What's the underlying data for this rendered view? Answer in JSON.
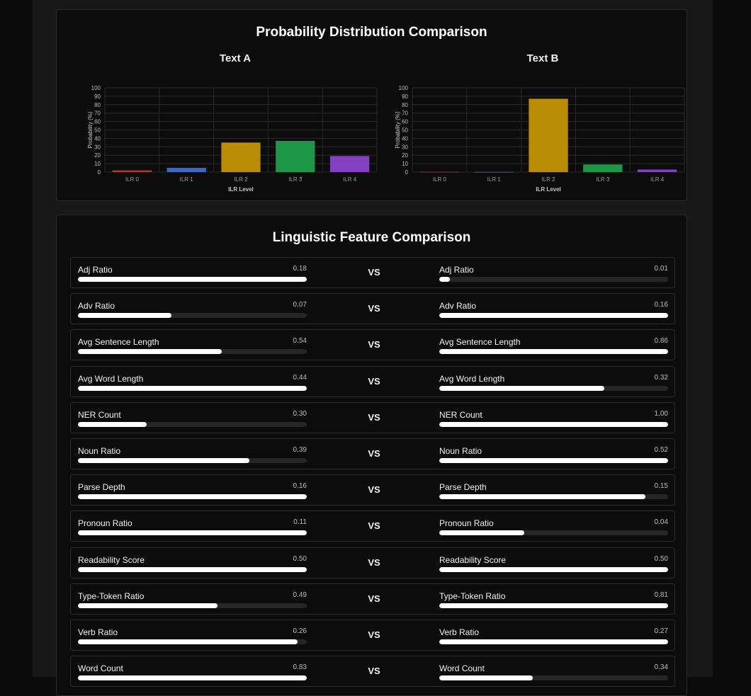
{
  "distribution": {
    "title": "Probability Distribution Comparison",
    "charts": [
      {
        "title": "Text A",
        "ylabel": "Probability (%)",
        "xlabel": "ILR Level",
        "yticks": [
          "0",
          "10",
          "20",
          "30",
          "40",
          "50",
          "60",
          "70",
          "80",
          "90",
          "100"
        ]
      },
      {
        "title": "Text B",
        "ylabel": "Probability (%)",
        "xlabel": "ILR Level",
        "yticks": [
          "0",
          "10",
          "20",
          "30",
          "40",
          "50",
          "60",
          "70",
          "80",
          "90",
          "100"
        ]
      }
    ]
  },
  "chart_data": [
    {
      "type": "bar",
      "title": "Text A",
      "categories": [
        "ILR 0",
        "ILR 1",
        "ILR 2",
        "ILR 3",
        "ILR 4"
      ],
      "values": [
        2,
        5,
        35,
        37,
        19
      ],
      "colors": [
        "#c2363a",
        "#3b6fd0",
        "#c59405",
        "#1f9e49",
        "#8a44cc"
      ],
      "xlabel": "ILR Level",
      "ylabel": "Probability (%)",
      "ylim": [
        0,
        100
      ],
      "grid": true
    },
    {
      "type": "bar",
      "title": "Text B",
      "categories": [
        "ILR 0",
        "ILR 1",
        "ILR 2",
        "ILR 3",
        "ILR 4"
      ],
      "values": [
        0.3,
        0.2,
        87,
        9,
        3
      ],
      "colors": [
        "#c2363a",
        "#3b6fd0",
        "#c59405",
        "#1f9e49",
        "#8a44cc"
      ],
      "xlabel": "ILR Level",
      "ylabel": "Probability (%)",
      "ylim": [
        0,
        100
      ],
      "grid": true
    }
  ],
  "features": {
    "title": "Linguistic Feature Comparison",
    "vs_label": "VS",
    "rows": [
      {
        "left": {
          "label": "Adj Ratio",
          "value": "0.18",
          "fill": 1.0
        },
        "right": {
          "label": "Adj Ratio",
          "value": "0.01",
          "fill": 0.045
        }
      },
      {
        "left": {
          "label": "Adv Ratio",
          "value": "0.07",
          "fill": 0.41
        },
        "right": {
          "label": "Adv Ratio",
          "value": "0.16",
          "fill": 1.0
        }
      },
      {
        "left": {
          "label": "Avg Sentence Length",
          "value": "0.54",
          "fill": 0.63
        },
        "right": {
          "label": "Avg Sentence Length",
          "value": "0.86",
          "fill": 1.0
        }
      },
      {
        "left": {
          "label": "Avg Word Length",
          "value": "0.44",
          "fill": 1.0
        },
        "right": {
          "label": "Avg Word Length",
          "value": "0.32",
          "fill": 0.72
        }
      },
      {
        "left": {
          "label": "NER Count",
          "value": "0.30",
          "fill": 0.3
        },
        "right": {
          "label": "NER Count",
          "value": "1.00",
          "fill": 1.0
        }
      },
      {
        "left": {
          "label": "Noun Ratio",
          "value": "0.39",
          "fill": 0.75
        },
        "right": {
          "label": "Noun Ratio",
          "value": "0.52",
          "fill": 1.0
        }
      },
      {
        "left": {
          "label": "Parse Depth",
          "value": "0.16",
          "fill": 1.0
        },
        "right": {
          "label": "Parse Depth",
          "value": "0.15",
          "fill": 0.9
        }
      },
      {
        "left": {
          "label": "Pronoun Ratio",
          "value": "0.11",
          "fill": 1.0
        },
        "right": {
          "label": "Pronoun Ratio",
          "value": "0.04",
          "fill": 0.37
        }
      },
      {
        "left": {
          "label": "Readability Score",
          "value": "0.50",
          "fill": 1.0
        },
        "right": {
          "label": "Readability Score",
          "value": "0.50",
          "fill": 1.0
        }
      },
      {
        "left": {
          "label": "Type-Token Ratio",
          "value": "0.49",
          "fill": 0.61
        },
        "right": {
          "label": "Type-Token Ratio",
          "value": "0.81",
          "fill": 1.0
        }
      },
      {
        "left": {
          "label": "Verb Ratio",
          "value": "0.26",
          "fill": 0.96
        },
        "right": {
          "label": "Verb Ratio",
          "value": "0.27",
          "fill": 1.0
        }
      },
      {
        "left": {
          "label": "Word Count",
          "value": "0.83",
          "fill": 1.0
        },
        "right": {
          "label": "Word Count",
          "value": "0.34",
          "fill": 0.41
        }
      }
    ]
  }
}
